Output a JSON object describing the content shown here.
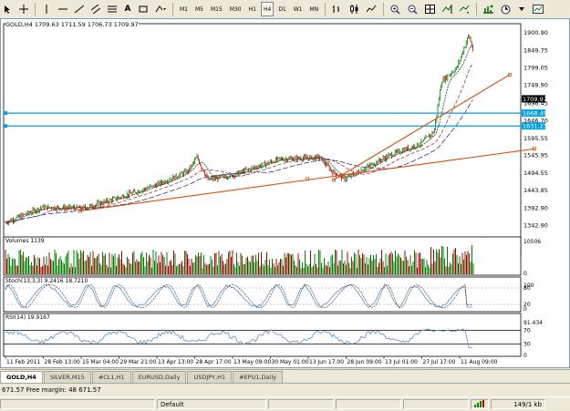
{
  "toolbar": {
    "timeframes": [
      "M1",
      "M5",
      "M15",
      "M30",
      "H1",
      "H4",
      "D1",
      "W1",
      "MN"
    ],
    "active_timeframe": "H4"
  },
  "chart": {
    "info": "GOLD,H4  1709.63 1711.59 1706.73 1709.97",
    "price_labels": [
      "1900.90",
      "1849.75",
      "1799.05",
      "1749.90",
      "1696.45",
      "1646.70",
      "1595.55",
      "1545.95",
      "1494.55",
      "1443.85",
      "1392.90",
      "1342.90"
    ],
    "current_price": "1709.97",
    "hline1_price": "1668.49",
    "hline2_price": "1631.23",
    "time_labels": [
      "11 Feb 2011",
      "28 Feb 13:00",
      "15 Mar 04:00",
      "29 Mar 21:00",
      "13 Apr 13:00",
      "28 Apr 17:00",
      "13 May 09:00",
      "30 May 01:00",
      "13 Jun 17:00",
      "28 Jun 09:00",
      "13 Jul 01:00",
      "27 Jul 17:00",
      "11 Aug 09:00"
    ],
    "volumes_label": "Volumes 1139",
    "volumes_scale": [
      "10506",
      "0"
    ],
    "stoch_label": "Stoch(13,3,3) 9.2416 18.7210",
    "stoch_scale": [
      "100",
      "80",
      "20",
      "0"
    ],
    "rsi_label": "RSI(14) 19.9167",
    "rsi_scale": [
      "91.434",
      "70",
      "30",
      "0"
    ],
    "colors": {
      "candle_up": "#008000",
      "candle_down": "#c00000",
      "trendline": "#d05010",
      "hline": "#00a0e0",
      "osc": "#5a8fc0"
    }
  },
  "tabs": [
    "GOLD,H4",
    "SILVER,M15",
    "#CL1,H1",
    "EURUSD,Daily",
    "USDJPY,H1",
    "#EPU1,Daily"
  ],
  "active_tab": "GOLD,H4",
  "margin_text": "671.57 Free margin: 48 671.57",
  "status": {
    "profile": "Default",
    "traffic": "149/1 kb"
  }
}
